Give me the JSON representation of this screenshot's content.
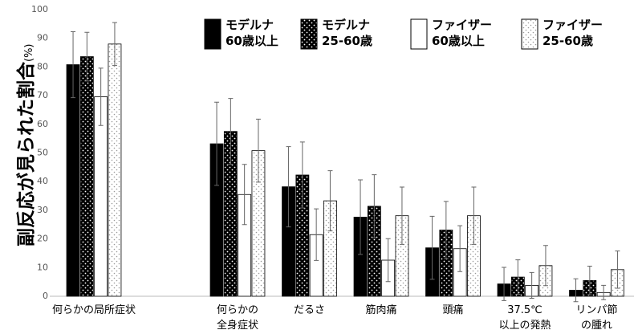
{
  "chart_data": {
    "type": "bar",
    "ylabel": "副反応が見られた割合",
    "ylabel_unit": "(%)",
    "categories": [
      "何らかの局所症状",
      "何らかの\n全身症状",
      "だるさ",
      "筋肉痛",
      "頭痛",
      "37.5℃\n以上の発熱",
      "リンパ節\nの腫れ"
    ],
    "series": [
      {
        "name": "モデルナ\n60歳以上",
        "color": "#000000",
        "pattern": false,
        "values": [
          80.8,
          53.2,
          38.2,
          27.6,
          16.9,
          4.3,
          2.1
        ],
        "errors": [
          11.5,
          14.5,
          14,
          13,
          11,
          5.8,
          4
        ]
      },
      {
        "name": "モデルナ\n25-60歳",
        "color": "#000000",
        "pattern": true,
        "values": [
          83.6,
          57.5,
          42.3,
          31.4,
          23.1,
          6.7,
          5.5
        ],
        "errors": [
          8.5,
          11.5,
          11.5,
          11,
          10,
          6,
          5
        ]
      },
      {
        "name": "ファイザー\n60歳以上",
        "color": "#ffffff",
        "pattern": false,
        "values": [
          69.6,
          35.5,
          21.5,
          12.6,
          16.6,
          3.8,
          1.3
        ],
        "errors": [
          10,
          10.5,
          9,
          7.5,
          8,
          4.5,
          2.5
        ]
      },
      {
        "name": "ファイザー\n25-60歳",
        "color": "#ffffff",
        "pattern": true,
        "values": [
          88.0,
          50.8,
          33.3,
          28.1,
          28.1,
          10.7,
          9.3
        ],
        "errors": [
          7.5,
          11,
          10.5,
          10,
          10,
          7,
          6.5
        ]
      }
    ],
    "ylim": [
      0,
      100
    ],
    "yticks": [
      0,
      10,
      20,
      30,
      40,
      50,
      60,
      70,
      80,
      90,
      100
    ],
    "grid": false
  }
}
